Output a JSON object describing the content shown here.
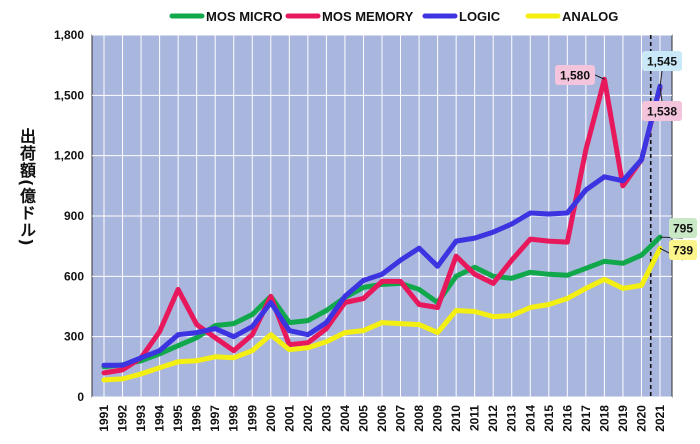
{
  "chart_data": {
    "type": "line",
    "title": "",
    "xlabel": "",
    "ylabel": "出荷額(億ドル)",
    "ylim": [
      0,
      1800
    ],
    "yticks": [
      0,
      300,
      600,
      900,
      1200,
      1500,
      1800
    ],
    "ytick_labels": [
      "0",
      "300",
      "600",
      "900",
      "1,200",
      "1,500",
      "1,800"
    ],
    "x": [
      "1991",
      "1992",
      "1993",
      "1994",
      "1995",
      "1996",
      "1997",
      "1998",
      "1999",
      "2000",
      "2001",
      "2002",
      "2003",
      "2004",
      "2005",
      "2006",
      "2007",
      "2008",
      "2009",
      "2010",
      "2011",
      "2012",
      "2013",
      "2014",
      "2015",
      "2016",
      "2017",
      "2018",
      "2019",
      "2020",
      "2021"
    ],
    "grid": true,
    "legend_position": "top",
    "divider_after": "2020",
    "series": [
      {
        "name": "MOS MICRO",
        "color": "#10a84b",
        "values": [
          150,
          160,
          180,
          215,
          255,
          295,
          355,
          365,
          410,
          500,
          370,
          380,
          430,
          495,
          545,
          560,
          565,
          535,
          470,
          600,
          645,
          600,
          590,
          620,
          610,
          605,
          640,
          675,
          665,
          705,
          795
        ]
      },
      {
        "name": "MOS MEMORY",
        "color": "#e8185c",
        "values": [
          120,
          135,
          195,
          325,
          535,
          360,
          295,
          230,
          310,
          500,
          260,
          270,
          340,
          470,
          490,
          575,
          575,
          460,
          445,
          700,
          610,
          565,
          680,
          785,
          775,
          770,
          1230,
          1580,
          1050,
          1180,
          1538
        ]
      },
      {
        "name": "LOGIC",
        "color": "#3b34e0",
        "values": [
          158,
          158,
          195,
          230,
          310,
          320,
          340,
          300,
          350,
          470,
          330,
          310,
          370,
          500,
          580,
          610,
          680,
          740,
          650,
          775,
          790,
          820,
          860,
          915,
          910,
          915,
          1030,
          1095,
          1075,
          1180,
          1545
        ]
      },
      {
        "name": "ANALOG",
        "color": "#f4ef12",
        "values": [
          85,
          90,
          115,
          145,
          175,
          180,
          200,
          195,
          230,
          310,
          235,
          245,
          275,
          320,
          330,
          370,
          365,
          360,
          320,
          430,
          425,
          400,
          405,
          445,
          460,
          490,
          540,
          585,
          540,
          555,
          739
        ]
      }
    ],
    "annotations": [
      {
        "label": "1,580",
        "series": "MOS MEMORY",
        "x": "2018",
        "value": 1580,
        "fill": "#f4c4dc"
      },
      {
        "label": "1,545",
        "series": "LOGIC",
        "x": "2021",
        "value": 1545,
        "fill": "#c9e9f9"
      },
      {
        "label": "1,538",
        "series": "MOS MEMORY",
        "x": "2021",
        "value": 1538,
        "fill": "#f4c4dc"
      },
      {
        "label": "795",
        "series": "MOS MICRO",
        "x": "2021",
        "value": 795,
        "fill": "#c9e8c5"
      },
      {
        "label": "739",
        "series": "ANALOG",
        "x": "2021",
        "value": 739,
        "fill": "#fbf58c"
      }
    ]
  }
}
